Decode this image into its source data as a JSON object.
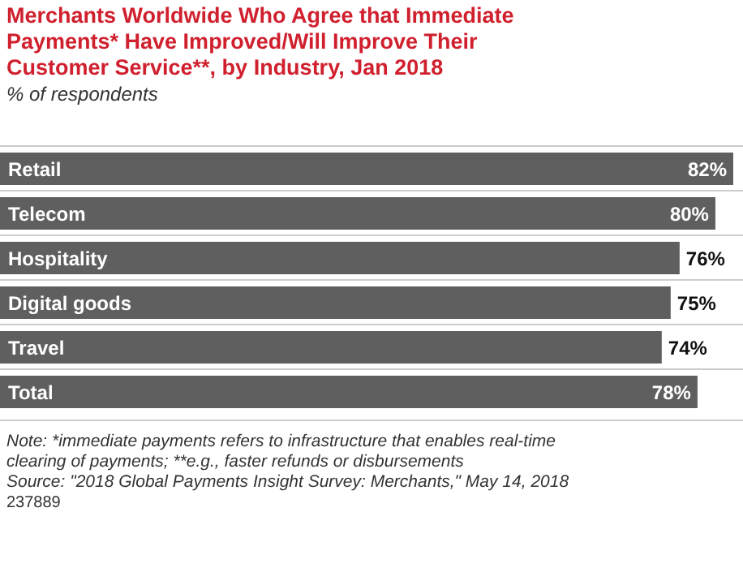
{
  "chart_data": {
    "type": "bar",
    "orientation": "horizontal",
    "title": "Merchants Worldwide Who Agree that Immediate Payments* Have Improved/Will Improve Their Customer Service**, by Industry, Jan 2018",
    "subtitle": "% of respondents",
    "categories": [
      "Retail",
      "Telecom",
      "Hospitality",
      "Digital goods",
      "Travel",
      "Total"
    ],
    "values": [
      82,
      80,
      76,
      75,
      74,
      78
    ],
    "value_labels": [
      "82%",
      "80%",
      "76%",
      "75%",
      "74%",
      "78%"
    ],
    "color": "#5f5f5f",
    "annotations": [
      "Note: *immediate payments refers to infrastructure that enables real-time clearing of payments; **e.g., faster refunds or disbursements",
      "Source: \"2018 Global Payments Insight Survey: Merchants,\" May 14, 2018",
      "237889"
    ]
  }
}
